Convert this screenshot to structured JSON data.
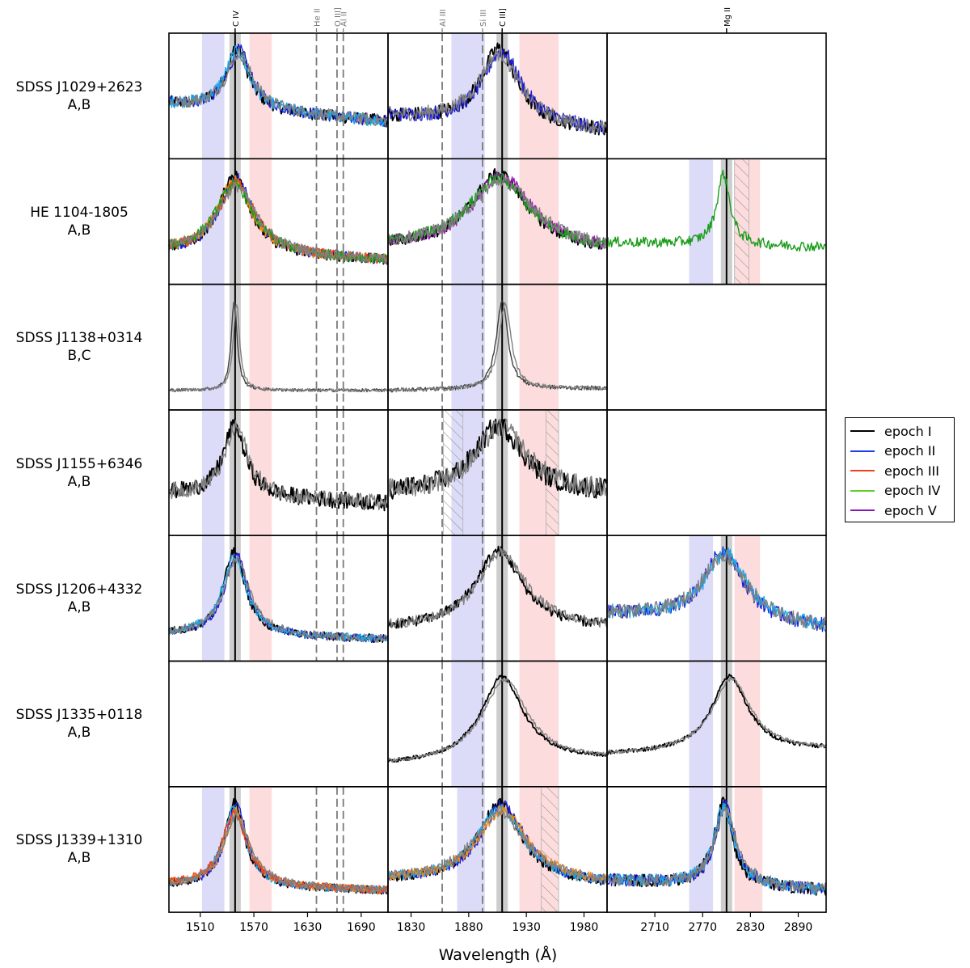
{
  "chart_data": {
    "type": "line",
    "xlabel": "Wavelength (Å)",
    "colors": {
      "epoch_I": "#000000",
      "epoch_II": "#1f1fd8",
      "epoch_II_light": "#1ca8e8",
      "epoch_III": "#f0401a",
      "epoch_III_light": "#f08c1a",
      "epoch_IV": "#1a9c1a",
      "epoch_V": "#a01ab8",
      "second_image": "#808080",
      "blue_band": "#d6d6f8",
      "red_band": "#fbd6d6"
    },
    "legend": {
      "placement": "right",
      "entries": [
        {
          "label": "epoch I",
          "color": "#000000"
        },
        {
          "label": "epoch II",
          "color": "#1f3fe8"
        },
        {
          "label": "epoch III",
          "color": "#f0401a"
        },
        {
          "label": "epoch IV",
          "color": "#5ecf2a"
        },
        {
          "label": "epoch V",
          "color": "#8a1ab8"
        }
      ]
    },
    "columns": [
      {
        "name": "civ",
        "xlim": [
          1475,
          1720
        ],
        "ticks": [
          1510,
          1570,
          1630,
          1690
        ],
        "center": 1549,
        "center_label": "C IV",
        "markers": [
          {
            "label": "He II",
            "x": 1640
          },
          {
            "label": "O III]",
            "x": 1663
          },
          {
            "label": "Al II",
            "x": 1670
          }
        ]
      },
      {
        "name": "ciii",
        "xlim": [
          1810,
          2000
        ],
        "ticks": [
          1830,
          1880,
          1930,
          1980
        ],
        "center": 1909,
        "center_label": "C III]",
        "markers": [
          {
            "label": "Al III",
            "x": 1857
          },
          {
            "label": "Si III",
            "x": 1892
          }
        ]
      },
      {
        "name": "mgii",
        "xlim": [
          2650,
          2925
        ],
        "ticks": [
          2710,
          2770,
          2830,
          2890
        ],
        "center": 2800,
        "center_label": "Mg II",
        "markers": []
      }
    ],
    "rows": [
      {
        "object": "SDSS J1029+2623",
        "images": "A,B",
        "panels": [
          {
            "col": 0,
            "blue": [
              1512,
              1537
            ],
            "red": [
              1565,
              1590
            ],
            "hatch": [],
            "series": [
              "black",
              "blue",
              "lightblue",
              "gray"
            ],
            "peak": 1552,
            "fwhm": 30,
            "cont": [
              0.42,
              0.25
            ],
            "noise": 0.06
          },
          {
            "col": 1,
            "blue": [
              1865,
              1894
            ],
            "red": [
              1924,
              1958
            ],
            "hatch": [],
            "series": [
              "black",
              "blue",
              "gray"
            ],
            "peak": 1907,
            "fwhm": 38,
            "cont": [
              0.3,
              0.15
            ],
            "noise": 0.07
          },
          null
        ]
      },
      {
        "object": "HE 1104-1805",
        "images": "A,B",
        "panels": [
          {
            "col": 0,
            "blue": [
              1512,
              1537
            ],
            "red": [
              1565,
              1590
            ],
            "hatch": [],
            "series": [
              "black",
              "blue",
              "orange",
              "red",
              "green",
              "gray"
            ],
            "peak": 1549,
            "fwhm": 42,
            "cont": [
              0.2,
              0.12
            ],
            "noise": 0.05
          },
          {
            "col": 1,
            "blue": [
              1865,
              1894
            ],
            "red": [
              1924,
              1958
            ],
            "hatch": [],
            "series": [
              "black",
              "purple",
              "green",
              "gray"
            ],
            "peak": 1907,
            "fwhm": 60,
            "cont": [
              0.25,
              0.2
            ],
            "noise": 0.06
          },
          {
            "col": 2,
            "blue": [
              2753,
              2783
            ],
            "red": [
              2810,
              2842
            ],
            "hatch": [
              [
                2810,
                2828
              ]
            ],
            "series": [
              "green"
            ],
            "peak": 2797,
            "fwhm": 20,
            "cont": [
              0.3,
              0.25
            ],
            "noise": 0.05
          }
        ]
      },
      {
        "object": "SDSS J1138+0314",
        "images": "B,C",
        "panels": [
          {
            "col": 0,
            "blue": [
              1512,
              1537
            ],
            "red": [
              1565,
              1590
            ],
            "hatch": [],
            "series": [
              "darkgray",
              "gray"
            ],
            "peak": 1549,
            "fwhm": 8,
            "cont": [
              0.08,
              0.08
            ],
            "noise": 0.015
          },
          {
            "col": 1,
            "blue": [
              1865,
              1894
            ],
            "red": [
              1924,
              1958
            ],
            "hatch": [],
            "series": [
              "darkgray",
              "gray"
            ],
            "peak": 1910,
            "fwhm": 12,
            "cont": [
              0.08,
              0.1
            ],
            "noise": 0.02
          },
          null
        ]
      },
      {
        "object": "SDSS J1155+6346",
        "images": "A,B",
        "panels": [
          {
            "col": 0,
            "blue": [
              1512,
              1537
            ],
            "red": [
              1565,
              1590
            ],
            "hatch": [],
            "series": [
              "black",
              "gray"
            ],
            "peak": 1549,
            "fwhm": 30,
            "cont": [
              0.3,
              0.2
            ],
            "noise": 0.08
          },
          {
            "col": 1,
            "blue": [
              1865,
              1894
            ],
            "red": [
              1924,
              1958
            ],
            "hatch": [
              [
                1858,
                1875
              ],
              [
                1947,
                1958
              ]
            ],
            "series": [
              "black",
              "gray"
            ],
            "peak": 1907,
            "fwhm": 50,
            "cont": [
              0.3,
              0.3
            ],
            "noise": 0.1
          },
          null
        ]
      },
      {
        "object": "SDSS J1206+4332",
        "images": "A,B",
        "panels": [
          {
            "col": 0,
            "blue": [
              1512,
              1537
            ],
            "red": [
              1565,
              1590
            ],
            "hatch": [],
            "series": [
              "black",
              "blue",
              "lightblue",
              "gray"
            ],
            "peak": 1549,
            "fwhm": 30,
            "cont": [
              0.15,
              0.1
            ],
            "noise": 0.04
          },
          {
            "col": 1,
            "blue": [
              1865,
              1894
            ],
            "red": [
              1924,
              1955
            ],
            "hatch": [],
            "series": [
              "black",
              "gray"
            ],
            "peak": 1907,
            "fwhm": 50,
            "cont": [
              0.2,
              0.2
            ],
            "noise": 0.05
          },
          {
            "col": 2,
            "blue": [
              2753,
              2783
            ],
            "red": [
              2810,
              2842
            ],
            "hatch": [],
            "series": [
              "blue",
              "lightblue",
              "gray"
            ],
            "peak": 2797,
            "fwhm": 60,
            "cont": [
              0.35,
              0.2
            ],
            "noise": 0.07
          }
        ]
      },
      {
        "object": "SDSS J1335+0118",
        "images": "A,B",
        "panels": [
          null,
          {
            "col": 1,
            "blue": [
              1865,
              1894
            ],
            "red": [
              1924,
              1958
            ],
            "hatch": [],
            "series": [
              "black",
              "gray"
            ],
            "peak": 1910,
            "fwhm": 45,
            "cont": [
              0.1,
              0.15
            ],
            "noise": 0.02
          },
          {
            "col": 2,
            "blue": [
              2753,
              2783
            ],
            "red": [
              2810,
              2842
            ],
            "hatch": [],
            "series": [
              "black",
              "gray"
            ],
            "peak": 2805,
            "fwhm": 55,
            "cont": [
              0.2,
              0.25
            ],
            "noise": 0.02
          }
        ]
      },
      {
        "object": "SDSS J1339+1310",
        "images": "A,B",
        "panels": [
          {
            "col": 0,
            "blue": [
              1512,
              1537
            ],
            "red": [
              1565,
              1590
            ],
            "hatch": [],
            "series": [
              "black",
              "blue",
              "lightblue",
              "orange",
              "red",
              "gray"
            ],
            "peak": 1549,
            "fwhm": 28,
            "cont": [
              0.15,
              0.1
            ],
            "noise": 0.04
          },
          {
            "col": 1,
            "blue": [
              1870,
              1894
            ],
            "red": [
              1924,
              1958
            ],
            "hatch": [
              [
                1943,
                1958
              ]
            ],
            "series": [
              "black",
              "blue",
              "lightblue",
              "orange",
              "gray"
            ],
            "peak": 1908,
            "fwhm": 45,
            "cont": [
              0.2,
              0.15
            ],
            "noise": 0.05
          },
          {
            "col": 2,
            "blue": [
              2753,
              2783
            ],
            "red": [
              2810,
              2845
            ],
            "hatch": [],
            "series": [
              "black",
              "blue",
              "lightblue",
              "gray"
            ],
            "peak": 2797,
            "fwhm": 28,
            "cont": [
              0.2,
              0.1
            ],
            "noise": 0.06
          }
        ]
      }
    ]
  }
}
